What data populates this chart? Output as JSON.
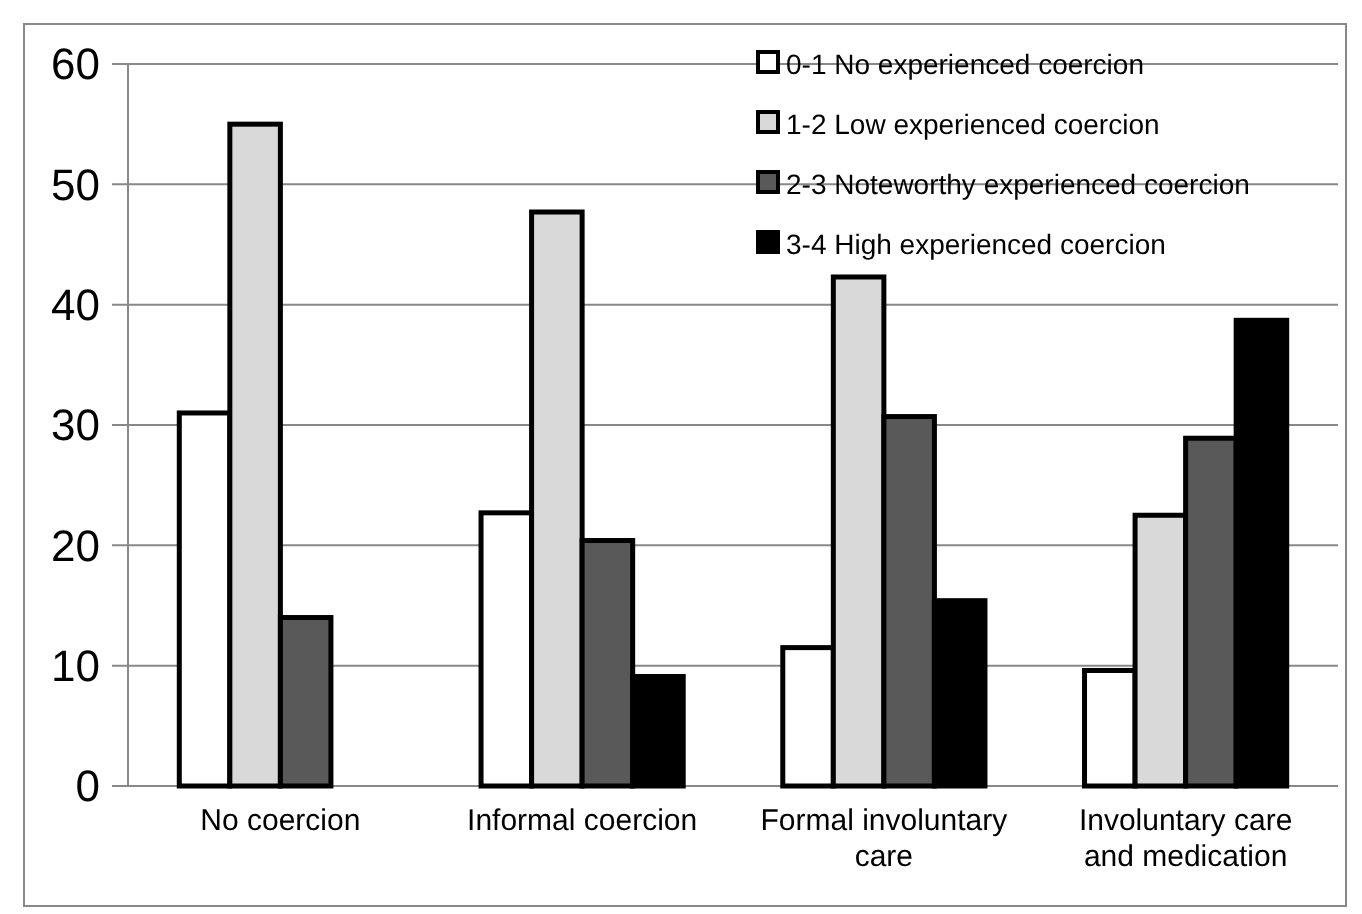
{
  "chart_data": {
    "type": "bar",
    "categories": [
      "No coercion",
      "Informal coercion",
      "Formal involuntary care",
      "Involuntary care and medication"
    ],
    "series": [
      {
        "name": "0-1 No experienced coercion",
        "color": "#ffffff",
        "values": [
          31,
          22.7,
          11.5,
          9.6
        ]
      },
      {
        "name": "1-2 Low experienced coercion",
        "color": "#d9d9d9",
        "values": [
          55,
          47.7,
          42.3,
          22.5
        ]
      },
      {
        "name": "2-3 Noteworthy experienced coercion",
        "color": "#595959",
        "values": [
          14,
          20.4,
          30.7,
          28.9
        ]
      },
      {
        "name": "3-4 High experienced coercion",
        "color": "#000000",
        "values": [
          null,
          9.1,
          15.4,
          38.7
        ]
      }
    ],
    "ylim": [
      0,
      60
    ],
    "yticks": [
      0,
      10,
      20,
      30,
      40,
      50,
      60
    ],
    "grid": "y",
    "legend": "top right"
  }
}
